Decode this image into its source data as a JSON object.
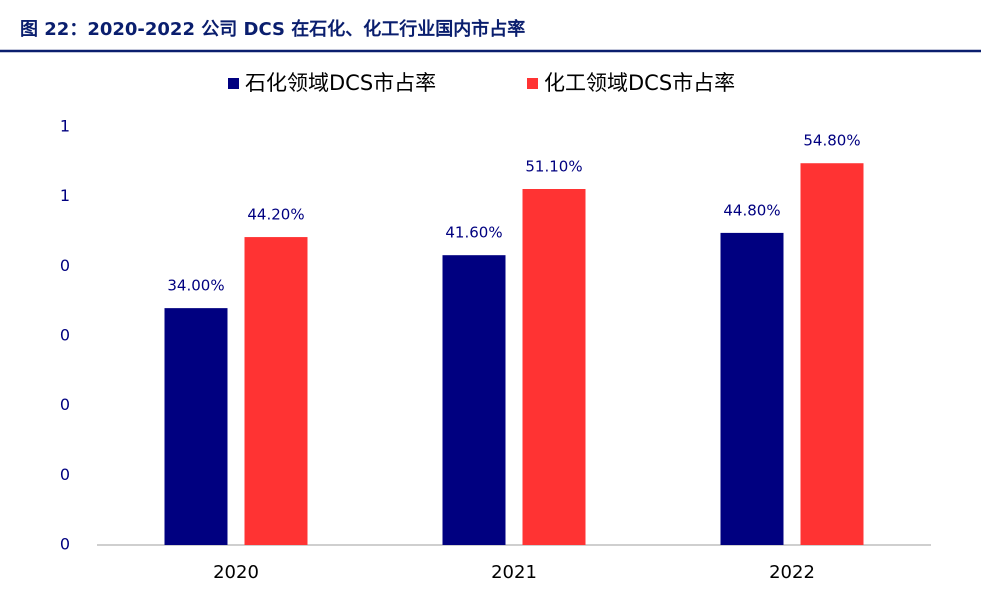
{
  "chart_data": {
    "type": "bar",
    "title": "图 22：2020-2022 公司 DCS 在石化、化工行业国内市占率",
    "categories": [
      "2020",
      "2021",
      "2022"
    ],
    "series": [
      {
        "name": "石化领域DCS市占率",
        "color": "#000080",
        "values": [
          0.34,
          0.416,
          0.448
        ],
        "value_labels": [
          "34.00%",
          "41.60%",
          "44.80%"
        ]
      },
      {
        "name": "化工领域DCS市占率",
        "color": "#ff3333",
        "values": [
          0.442,
          0.511,
          0.548
        ],
        "value_labels": [
          "44.20%",
          "51.10%",
          "54.80%"
        ]
      }
    ],
    "ylim": [
      0,
      0.6
    ],
    "yticks": [
      0,
      {
        "value": 0.1,
        "label": "0"
      },
      {
        "value": 0.2,
        "label": "0"
      },
      {
        "value": 0.3,
        "label": "0"
      },
      {
        "value": 0.4,
        "label": "0"
      },
      {
        "value": 0.5,
        "label": "1"
      },
      {
        "value": 0.6,
        "label": "1"
      }
    ],
    "legend": "top",
    "grid": false
  }
}
